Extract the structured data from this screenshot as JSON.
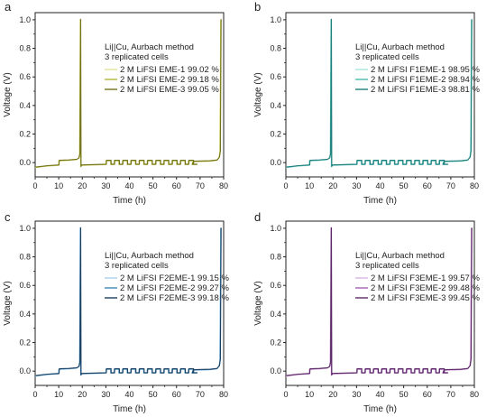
{
  "chart_data": [
    {
      "type": "line",
      "panel_label": "a",
      "xlabel": "Time (h)",
      "ylabel": "Voltage (V)",
      "xlim": [
        0,
        80
      ],
      "ylim": [
        -0.1,
        1.05
      ],
      "xticks": [
        "0",
        "10",
        "20",
        "30",
        "40",
        "50",
        "60",
        "70",
        "80"
      ],
      "yticks": [
        "0.0",
        "0.2",
        "0.4",
        "0.6",
        "0.8",
        "1.0"
      ],
      "annotation": [
        "Li||Cu, Aurbach method",
        "3 replicated cells"
      ],
      "legend_position": "upper-center",
      "series": [
        {
          "name": "2 M LiFSI EME-1",
          "efficiency": "99.02 %",
          "color": "#e3e39a"
        },
        {
          "name": "2 M LiFSI EME-2",
          "efficiency": "99.18 %",
          "color": "#b7b73c"
        },
        {
          "name": "2 M LiFSI EME-3",
          "efficiency": "99.05 %",
          "color": "#72721b"
        }
      ]
    },
    {
      "type": "line",
      "panel_label": "b",
      "xlabel": "Time (h)",
      "ylabel": "Voltage (V)",
      "xlim": [
        0,
        80
      ],
      "ylim": [
        -0.1,
        1.05
      ],
      "xticks": [
        "0",
        "10",
        "20",
        "30",
        "40",
        "50",
        "60",
        "70",
        "80"
      ],
      "yticks": [
        "0.0",
        "0.2",
        "0.4",
        "0.6",
        "0.8",
        "1.0"
      ],
      "annotation": [
        "Li||Cu, Aurbach method",
        "3 replicated cells"
      ],
      "legend_position": "upper-center",
      "series": [
        {
          "name": "2 M LiFSI F1EME-1",
          "efficiency": "98.95 %",
          "color": "#a9e4dc"
        },
        {
          "name": "2 M LiFSI F1EME-2",
          "efficiency": "98.94 %",
          "color": "#4fb8b0"
        },
        {
          "name": "2 M LiFSI F1EME-3",
          "efficiency": "98.81 %",
          "color": "#1e7f7d"
        }
      ]
    },
    {
      "type": "line",
      "panel_label": "c",
      "xlabel": "Time (h)",
      "ylabel": "Voltage (V)",
      "xlim": [
        0,
        80
      ],
      "ylim": [
        -0.1,
        1.05
      ],
      "xticks": [
        "0",
        "10",
        "20",
        "30",
        "40",
        "50",
        "60",
        "70",
        "80"
      ],
      "yticks": [
        "0.0",
        "0.2",
        "0.4",
        "0.6",
        "0.8",
        "1.0"
      ],
      "annotation": [
        "Li||Cu, Aurbach method",
        "3 replicated cells"
      ],
      "legend_position": "upper-center",
      "series": [
        {
          "name": "2 M LiFSI F2EME-1",
          "efficiency": "99.15 %",
          "color": "#a7d3ec"
        },
        {
          "name": "2 M LiFSI F2EME-2",
          "efficiency": "99.27 %",
          "color": "#3d88b8"
        },
        {
          "name": "2 M LiFSI F2EME-3",
          "efficiency": "99.18 %",
          "color": "#1b3f63"
        }
      ]
    },
    {
      "type": "line",
      "panel_label": "d",
      "xlabel": "Time (h)",
      "ylabel": "Voltage (V)",
      "xlim": [
        0,
        80
      ],
      "ylim": [
        -0.1,
        1.05
      ],
      "xticks": [
        "0",
        "10",
        "20",
        "30",
        "40",
        "50",
        "60",
        "70",
        "80"
      ],
      "yticks": [
        "0.0",
        "0.2",
        "0.4",
        "0.6",
        "0.8",
        "1.0"
      ],
      "annotation": [
        "Li||Cu, Aurbach method",
        "3 replicated cells"
      ],
      "legend_position": "upper-center",
      "series": [
        {
          "name": "2 M LiFSI F3EME-1",
          "efficiency": "99.57 %",
          "color": "#dcb7e3"
        },
        {
          "name": "2 M LiFSI F3EME-2",
          "efficiency": "99.48 %",
          "color": "#a560b4"
        },
        {
          "name": "2 M LiFSI F3EME-3",
          "efficiency": "99.45 %",
          "color": "#5b2a66"
        }
      ]
    }
  ]
}
